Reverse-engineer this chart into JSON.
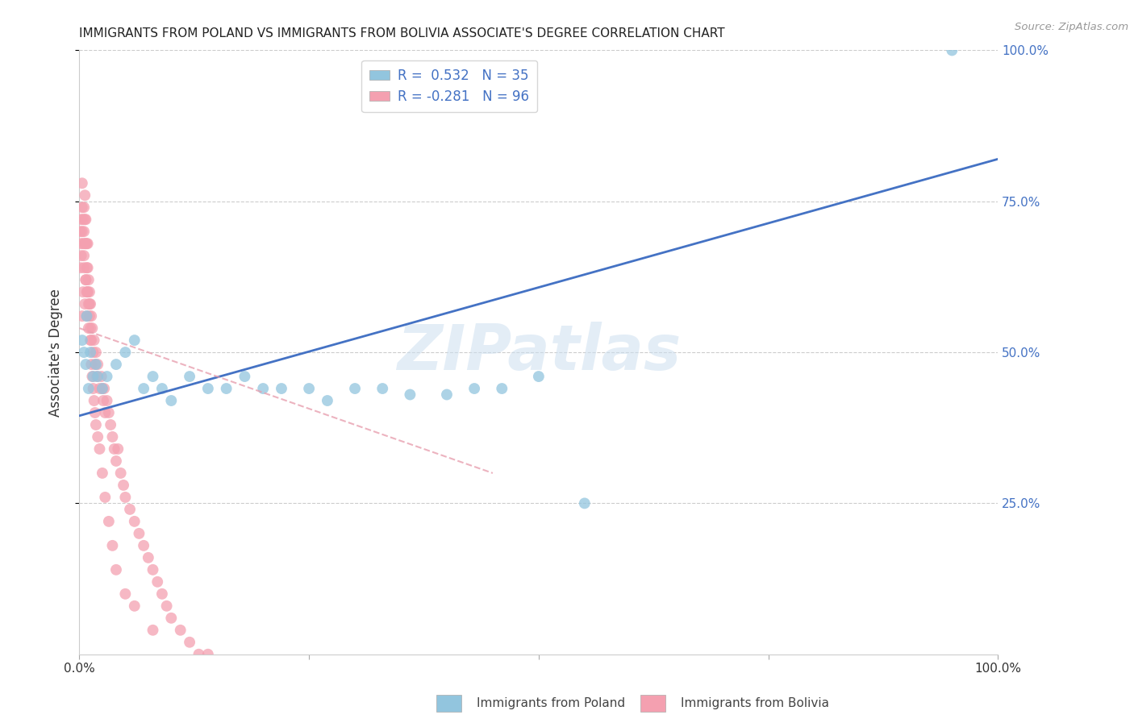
{
  "title": "IMMIGRANTS FROM POLAND VS IMMIGRANTS FROM BOLIVIA ASSOCIATE'S DEGREE CORRELATION CHART",
  "source": "Source: ZipAtlas.com",
  "ylabel": "Associate's Degree",
  "xlim": [
    0,
    1.0
  ],
  "ylim": [
    0,
    1.0
  ],
  "poland_R": 0.532,
  "poland_N": 35,
  "bolivia_R": -0.281,
  "bolivia_N": 96,
  "poland_color": "#92C5DE",
  "bolivia_color": "#F4A0B0",
  "poland_line_color": "#4472C4",
  "bolivia_line_color": "#E8A0B0",
  "legend_poland_label": "Immigrants from Poland",
  "legend_bolivia_label": "Immigrants from Bolivia",
  "watermark_text": "ZIPatlas",
  "poland_line_x0": 0.0,
  "poland_line_y0": 0.395,
  "poland_line_x1": 1.0,
  "poland_line_y1": 0.82,
  "bolivia_line_x0": 0.0,
  "bolivia_line_y0": 0.54,
  "bolivia_line_x1": 0.45,
  "bolivia_line_y1": 0.3,
  "poland_x": [
    0.003,
    0.005,
    0.007,
    0.008,
    0.01,
    0.012,
    0.015,
    0.018,
    0.02,
    0.025,
    0.03,
    0.04,
    0.05,
    0.06,
    0.07,
    0.08,
    0.09,
    0.1,
    0.12,
    0.14,
    0.16,
    0.18,
    0.2,
    0.22,
    0.25,
    0.27,
    0.3,
    0.33,
    0.36,
    0.4,
    0.43,
    0.46,
    0.5,
    0.55,
    0.95
  ],
  "poland_y": [
    0.52,
    0.5,
    0.48,
    0.56,
    0.44,
    0.5,
    0.46,
    0.48,
    0.46,
    0.44,
    0.46,
    0.48,
    0.5,
    0.52,
    0.44,
    0.46,
    0.44,
    0.42,
    0.46,
    0.44,
    0.44,
    0.46,
    0.44,
    0.44,
    0.44,
    0.42,
    0.44,
    0.44,
    0.43,
    0.43,
    0.44,
    0.44,
    0.46,
    0.25,
    1.0
  ],
  "bolivia_x": [
    0.001,
    0.001,
    0.002,
    0.002,
    0.002,
    0.003,
    0.003,
    0.003,
    0.004,
    0.004,
    0.005,
    0.005,
    0.005,
    0.006,
    0.006,
    0.006,
    0.007,
    0.007,
    0.007,
    0.008,
    0.008,
    0.008,
    0.009,
    0.009,
    0.009,
    0.01,
    0.01,
    0.011,
    0.011,
    0.012,
    0.012,
    0.013,
    0.013,
    0.014,
    0.015,
    0.016,
    0.017,
    0.018,
    0.019,
    0.02,
    0.022,
    0.024,
    0.025,
    0.026,
    0.027,
    0.028,
    0.03,
    0.032,
    0.034,
    0.036,
    0.038,
    0.04,
    0.042,
    0.045,
    0.048,
    0.05,
    0.055,
    0.06,
    0.065,
    0.07,
    0.075,
    0.08,
    0.085,
    0.09,
    0.095,
    0.1,
    0.11,
    0.12,
    0.13,
    0.14,
    0.003,
    0.004,
    0.005,
    0.006,
    0.007,
    0.008,
    0.009,
    0.01,
    0.011,
    0.012,
    0.013,
    0.014,
    0.015,
    0.016,
    0.017,
    0.018,
    0.02,
    0.022,
    0.025,
    0.028,
    0.032,
    0.036,
    0.04,
    0.05,
    0.06,
    0.08
  ],
  "bolivia_y": [
    0.64,
    0.7,
    0.68,
    0.72,
    0.66,
    0.7,
    0.74,
    0.78,
    0.68,
    0.72,
    0.66,
    0.7,
    0.74,
    0.68,
    0.72,
    0.76,
    0.62,
    0.68,
    0.72,
    0.6,
    0.64,
    0.68,
    0.6,
    0.64,
    0.68,
    0.58,
    0.62,
    0.6,
    0.56,
    0.58,
    0.54,
    0.56,
    0.52,
    0.54,
    0.5,
    0.52,
    0.48,
    0.5,
    0.46,
    0.48,
    0.44,
    0.46,
    0.44,
    0.42,
    0.44,
    0.4,
    0.42,
    0.4,
    0.38,
    0.36,
    0.34,
    0.32,
    0.34,
    0.3,
    0.28,
    0.26,
    0.24,
    0.22,
    0.2,
    0.18,
    0.16,
    0.14,
    0.12,
    0.1,
    0.08,
    0.06,
    0.04,
    0.02,
    0.0,
    0.0,
    0.56,
    0.6,
    0.64,
    0.58,
    0.62,
    0.56,
    0.6,
    0.54,
    0.58,
    0.52,
    0.48,
    0.46,
    0.44,
    0.42,
    0.4,
    0.38,
    0.36,
    0.34,
    0.3,
    0.26,
    0.22,
    0.18,
    0.14,
    0.1,
    0.08,
    0.04
  ]
}
